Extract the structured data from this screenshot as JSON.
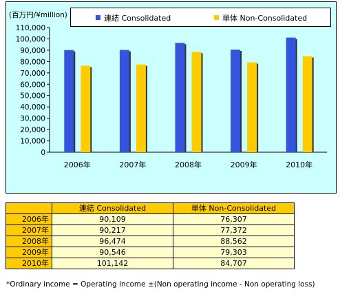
{
  "unit_label": "(百万円/¥million)",
  "legend": [
    {
      "label": "連結 Consolidated",
      "color": "#3355dd"
    },
    {
      "label": "単体 Non-Consolidated",
      "color": "#ffcc00"
    }
  ],
  "chart_data": {
    "type": "bar",
    "categories": [
      "2006年",
      "2007年",
      "2008年",
      "2009年",
      "2010年"
    ],
    "series": [
      {
        "name": "連結 Consolidated",
        "values": [
          90109,
          90217,
          96474,
          90546,
          101142
        ],
        "color": "#3355dd"
      },
      {
        "name": "単体 Non-Consolidated",
        "values": [
          76307,
          77372,
          88562,
          79303,
          84707
        ],
        "color": "#ffcc00"
      }
    ],
    "yticks": [
      "0",
      "10,000",
      "20,000",
      "30,000",
      "40,000",
      "50,000",
      "60,000",
      "70,000",
      "80,000",
      "90,000",
      "100,000",
      "110,000"
    ],
    "ylim": [
      0,
      110000
    ],
    "grid": false,
    "legend_position": "top"
  },
  "table": {
    "headers": [
      "連結 Consolidated",
      "単体 Non-Consolidated"
    ],
    "rows": [
      {
        "year": "2006年",
        "consolidated": "90,109",
        "non_consolidated": "76,307"
      },
      {
        "year": "2007年",
        "consolidated": "90,217",
        "non_consolidated": "77,372"
      },
      {
        "year": "2008年",
        "consolidated": "96,474",
        "non_consolidated": "88,562"
      },
      {
        "year": "2009年",
        "consolidated": "90,546",
        "non_consolidated": "79,303"
      },
      {
        "year": "2010年",
        "consolidated": "101,142",
        "non_consolidated": "84,707"
      }
    ]
  },
  "footnote": "*Ordinary income = Operating Income ±(Non operating income - Non operating loss)"
}
